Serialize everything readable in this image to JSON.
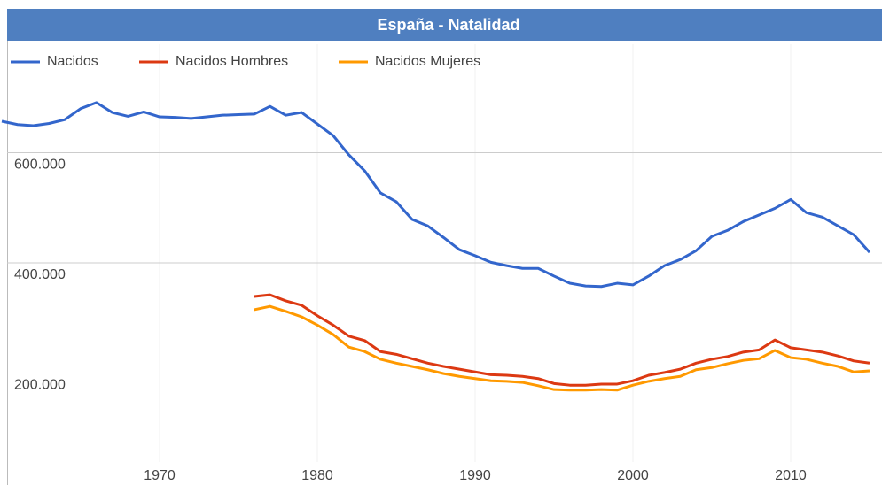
{
  "chart_data": {
    "type": "line",
    "title": "España - Natalidad",
    "x": [
      1960,
      1961,
      1962,
      1963,
      1964,
      1965,
      1966,
      1967,
      1968,
      1969,
      1970,
      1971,
      1972,
      1973,
      1974,
      1975,
      1976,
      1977,
      1978,
      1979,
      1980,
      1981,
      1982,
      1983,
      1984,
      1985,
      1986,
      1987,
      1988,
      1989,
      1990,
      1991,
      1992,
      1993,
      1994,
      1995,
      1996,
      1997,
      1998,
      1999,
      2000,
      2001,
      2002,
      2003,
      2004,
      2005,
      2006,
      2007,
      2008,
      2009,
      2010,
      2011,
      2012,
      2013,
      2014,
      2015
    ],
    "series": [
      {
        "name": "Nacidos",
        "color": "#3366cc",
        "values": [
          657000,
          651000,
          649000,
          653000,
          660000,
          680000,
          691000,
          673000,
          666000,
          674000,
          665000,
          664000,
          662000,
          665000,
          668000,
          669000,
          670000,
          684000,
          668000,
          673000,
          652000,
          631000,
          596000,
          567000,
          527000,
          511000,
          479000,
          467000,
          446000,
          424000,
          413000,
          401000,
          395000,
          390000,
          390000,
          376000,
          363000,
          358000,
          357000,
          363000,
          360000,
          376000,
          395000,
          406000,
          422000,
          448000,
          459000,
          475000,
          487000,
          499000,
          515000,
          491000,
          483000,
          467000,
          451000,
          419000
        ]
      },
      {
        "name": "Nacidos Hombres",
        "color": "#dc3912",
        "values": [
          null,
          null,
          null,
          null,
          null,
          null,
          null,
          null,
          null,
          null,
          null,
          null,
          null,
          null,
          null,
          null,
          339000,
          342000,
          331000,
          323000,
          304000,
          287000,
          267000,
          259000,
          239000,
          234000,
          226000,
          218000,
          212000,
          207000,
          202000,
          197000,
          196000,
          194000,
          190000,
          181000,
          178000,
          178000,
          180000,
          180000,
          186000,
          196000,
          201000,
          207000,
          218000,
          225000,
          230000,
          238000,
          242000,
          260000,
          246000,
          242000,
          238000,
          231000,
          222000,
          218000
        ]
      },
      {
        "name": "Nacidos Mujeres",
        "color": "#ff9900",
        "values": [
          null,
          null,
          null,
          null,
          null,
          null,
          null,
          null,
          null,
          null,
          null,
          null,
          null,
          null,
          null,
          null,
          315000,
          321000,
          312000,
          302000,
          287000,
          270000,
          247000,
          239000,
          225000,
          218000,
          212000,
          206000,
          199000,
          194000,
          190000,
          186000,
          185000,
          183000,
          177000,
          170000,
          169000,
          169000,
          170000,
          169000,
          178000,
          185000,
          190000,
          194000,
          206000,
          210000,
          217000,
          223000,
          226000,
          241000,
          228000,
          225000,
          218000,
          212000,
          202000,
          204000
        ]
      }
    ],
    "xlim": [
      1960,
      2015
    ],
    "xticks": [
      1970,
      1980,
      1990,
      2000,
      2010
    ],
    "ylim": [
      0,
      800000
    ],
    "yticks": [
      {
        "value": 200000,
        "label": "200.000"
      },
      {
        "value": 400000,
        "label": "400.000"
      },
      {
        "value": 600000,
        "label": "600.000"
      }
    ],
    "grid": true,
    "legend": "top"
  }
}
